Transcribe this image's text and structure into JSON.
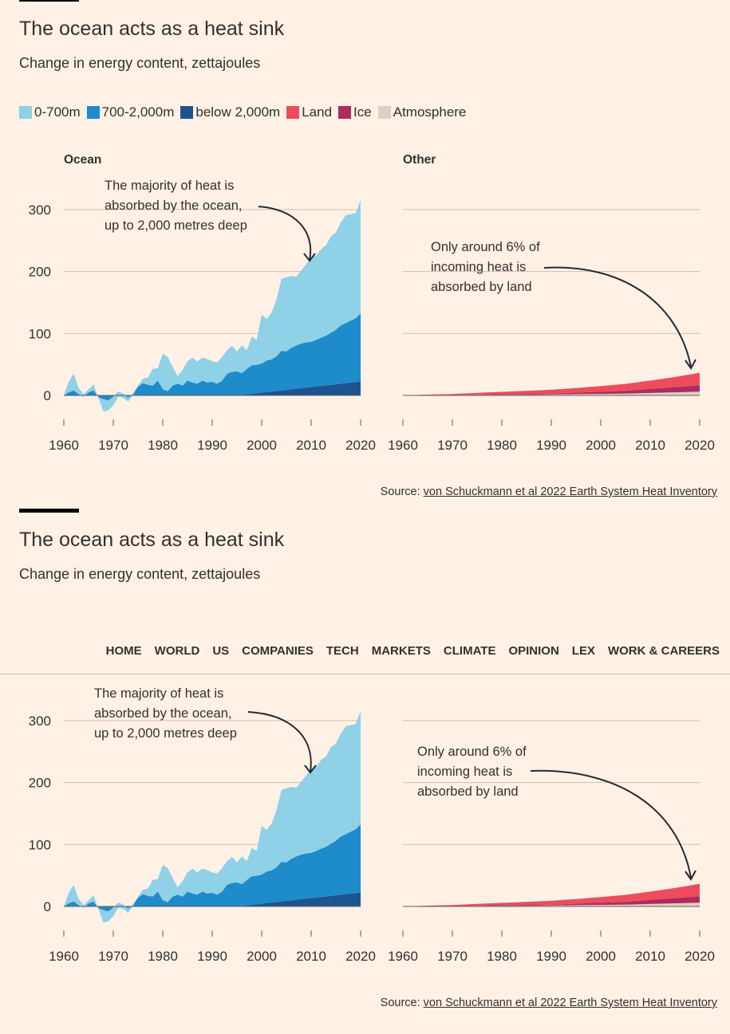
{
  "header": {
    "title": "The ocean acts as a heat sink",
    "subtitle": "Change in energy content, zettajoules"
  },
  "legend": [
    {
      "label": "0-700m",
      "color": "#8fd1e6"
    },
    {
      "label": "700-2,000m",
      "color": "#1e8bcb"
    },
    {
      "label": "below 2,000m",
      "color": "#1d5490"
    },
    {
      "label": "Land",
      "color": "#ee4c5c"
    },
    {
      "label": "Ice",
      "color": "#ac2d5d"
    },
    {
      "label": "Atmosphere",
      "color": "#dfcfc5"
    }
  ],
  "source": {
    "prefix": "Source: ",
    "link_text": "von Schuckmann et al 2022 Earth System Heat Inventory"
  },
  "annotations": {
    "ocean": [
      "The majority of heat is",
      "absorbed by the ocean,",
      "up to 2,000 metres deep"
    ],
    "other": [
      "Only around 6% of",
      "incoming heat is",
      "absorbed by land"
    ]
  },
  "nav": {
    "items": [
      "HOME",
      "WORLD",
      "US",
      "COMPANIES",
      "TECH",
      "MARKETS",
      "CLIMATE",
      "OPINION",
      "LEX",
      "WORK & CAREERS"
    ]
  },
  "chart_data": [
    {
      "type": "area",
      "title": "Ocean",
      "x_ticks": [
        1960,
        1970,
        1980,
        1990,
        2000,
        2010,
        2020
      ],
      "y_ticks": [
        0,
        100,
        200,
        300
      ],
      "xlim": [
        1960,
        2020
      ],
      "ylim": [
        -30,
        350
      ],
      "stacked": true,
      "x": [
        1960,
        1961,
        1962,
        1963,
        1964,
        1965,
        1966,
        1967,
        1968,
        1969,
        1970,
        1971,
        1972,
        1973,
        1974,
        1975,
        1976,
        1977,
        1978,
        1979,
        1980,
        1981,
        1982,
        1983,
        1984,
        1985,
        1986,
        1987,
        1988,
        1989,
        1990,
        1991,
        1992,
        1993,
        1994,
        1995,
        1996,
        1997,
        1998,
        1999,
        2000,
        2001,
        2002,
        2003,
        2004,
        2005,
        2006,
        2007,
        2008,
        2009,
        2010,
        2011,
        2012,
        2013,
        2014,
        2015,
        2016,
        2017,
        2018,
        2019,
        2020
      ],
      "series": [
        {
          "name": "below 2,000m",
          "color": "#1d5490",
          "values": [
            0,
            0,
            0,
            0,
            0,
            0,
            0,
            0,
            0,
            0,
            0,
            0,
            0,
            0,
            0,
            0,
            0,
            0,
            0,
            0,
            0,
            0,
            0,
            0,
            0,
            0,
            0,
            0,
            0,
            0,
            0,
            0,
            0,
            0,
            0,
            0,
            0.9,
            1.8,
            2.7,
            3.6,
            4.5,
            5.4,
            6.3,
            7.2,
            8.1,
            9,
            9.9,
            10.8,
            11.7,
            12.6,
            13.5,
            14.4,
            15.3,
            16.2,
            17.1,
            18,
            18.9,
            19.8,
            20.7,
            21.6,
            22.5
          ]
        },
        {
          "name": "700-2,000m",
          "color": "#1e8bcb",
          "values": [
            0,
            5,
            8,
            2,
            -2,
            5,
            8,
            -3,
            -6,
            -8,
            -2,
            6,
            3,
            -4,
            4,
            14,
            20,
            17,
            16,
            24,
            10,
            7,
            16,
            19,
            16,
            24,
            21,
            19,
            24,
            21,
            22,
            19,
            24,
            35,
            38,
            39,
            35,
            41,
            46,
            46,
            47,
            51,
            52,
            56,
            64,
            62,
            67,
            70,
            72,
            73,
            73,
            75,
            78,
            80,
            84,
            88,
            94,
            97,
            100,
            103,
            110
          ]
        },
        {
          "name": "0-700m",
          "color": "#8fd1e6",
          "values": [
            0,
            17,
            27,
            10,
            4,
            5,
            10,
            -1,
            -20,
            -16,
            -14,
            -8,
            -7,
            -6,
            -4,
            2,
            7,
            12,
            27,
            20,
            57,
            55,
            30,
            12,
            25,
            31,
            40,
            36,
            37,
            38,
            33,
            34,
            38,
            38,
            42,
            32,
            45,
            30,
            46,
            40,
            79,
            67,
            75,
            92,
            116,
            120,
            116,
            111,
            118,
            126,
            136,
            136,
            143,
            146,
            156,
            157,
            166,
            174,
            172,
            170,
            183
          ]
        }
      ]
    },
    {
      "type": "area",
      "title": "Other",
      "x_ticks": [
        1960,
        1970,
        1980,
        1990,
        2000,
        2010,
        2020
      ],
      "xlim": [
        1960,
        2020
      ],
      "ylim": [
        -30,
        350
      ],
      "stacked": true,
      "x": [
        1960,
        1965,
        1970,
        1975,
        1980,
        1985,
        1990,
        1995,
        2000,
        2005,
        2010,
        2015,
        2020
      ],
      "series": [
        {
          "name": "Atmosphere",
          "color": "#dfcfc5",
          "values": [
            0,
            0.5,
            0.5,
            1,
            1,
            1,
            1.5,
            2,
            2.5,
            3,
            4,
            5,
            6
          ]
        },
        {
          "name": "Ice",
          "color": "#ac2d5d",
          "values": [
            0,
            0,
            0,
            0.5,
            1,
            1.5,
            1.5,
            2.5,
            3.5,
            4.5,
            6.5,
            8.5,
            10.5
          ]
        },
        {
          "name": "Land",
          "color": "#ee4c5c",
          "values": [
            0,
            0.8,
            1.8,
            2.7,
            3.8,
            5,
            6.2,
            7.5,
            9,
            11.2,
            13.5,
            16.2,
            20
          ]
        }
      ]
    }
  ]
}
